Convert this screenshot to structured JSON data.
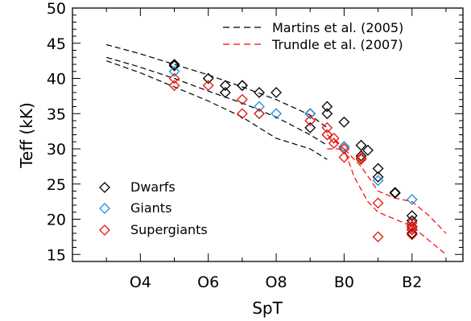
{
  "chart_data": {
    "type": "scatter",
    "xlabel": "SpT",
    "ylabel": "Teff (kK)",
    "xlim": [
      2,
      13.5
    ],
    "ylim": [
      14,
      50
    ],
    "x_ticks": [
      {
        "value": 4,
        "label": "O4"
      },
      {
        "value": 6,
        "label": "O6"
      },
      {
        "value": 8,
        "label": "O8"
      },
      {
        "value": 10,
        "label": "B0"
      },
      {
        "value": 12,
        "label": "B2"
      }
    ],
    "y_ticks": [
      15,
      20,
      25,
      30,
      35,
      40,
      45,
      50
    ],
    "line_series": [
      {
        "name": "Martins et al. (2005)",
        "color": "#000000",
        "style": "dashed",
        "lines": [
          [
            [
              3,
              44.8
            ],
            [
              4,
              43.5
            ],
            [
              5,
              42.0
            ],
            [
              6,
              40.5
            ],
            [
              7,
              38.8
            ],
            [
              8,
              37.0
            ],
            [
              9,
              34.8
            ],
            [
              9.5,
              33.0
            ]
          ],
          [
            [
              3,
              43.0
            ],
            [
              4,
              41.6
            ],
            [
              5,
              40.0
            ],
            [
              6,
              38.2
            ],
            [
              7,
              36.5
            ],
            [
              8,
              34.5
            ],
            [
              9,
              32.0
            ],
            [
              9.5,
              30.5
            ]
          ],
          [
            [
              3,
              42.5
            ],
            [
              4,
              40.8
            ],
            [
              5,
              38.8
            ],
            [
              6,
              36.8
            ],
            [
              7,
              34.5
            ],
            [
              8,
              31.5
            ],
            [
              9,
              30.0
            ],
            [
              9.5,
              28.5
            ]
          ]
        ]
      },
      {
        "name": "Trundle et al. (2007)",
        "color": "#ff0000",
        "style": "dashed",
        "lines": [
          [
            [
              9.5,
              30.0
            ],
            [
              10,
              30.0
            ],
            [
              10.5,
              27.5
            ],
            [
              11,
              24.0
            ],
            [
              11.5,
              23.0
            ],
            [
              12,
              22.5
            ],
            [
              12.5,
              20.5
            ],
            [
              13,
              18.0
            ]
          ],
          [
            [
              9.5,
              32.0
            ],
            [
              10,
              30.0
            ],
            [
              10.3,
              26.0
            ],
            [
              10.7,
              22.5
            ],
            [
              11,
              21.0
            ],
            [
              11.5,
              20.0
            ],
            [
              12,
              19.0
            ],
            [
              12.5,
              17.0
            ],
            [
              13,
              15.0
            ]
          ]
        ]
      }
    ],
    "series": [
      {
        "name": "Dwarfs",
        "color": "#000000",
        "marker": "diamond",
        "points": [
          [
            5,
            42
          ],
          [
            5,
            41.8
          ],
          [
            6,
            40
          ],
          [
            6.5,
            39
          ],
          [
            6.5,
            38
          ],
          [
            7,
            39
          ],
          [
            7,
            39
          ],
          [
            7.5,
            38
          ],
          [
            8,
            38
          ],
          [
            9,
            35
          ],
          [
            9,
            33
          ],
          [
            9.5,
            36
          ],
          [
            9.5,
            35
          ],
          [
            10,
            33.8
          ],
          [
            10,
            30.3
          ],
          [
            10.5,
            30.5
          ],
          [
            10.5,
            29
          ],
          [
            10.7,
            29.8
          ],
          [
            11,
            27.2
          ],
          [
            11,
            26
          ],
          [
            11.5,
            23.8
          ],
          [
            11.5,
            23.7
          ],
          [
            12,
            20.5
          ],
          [
            12,
            19.8
          ],
          [
            12,
            19
          ],
          [
            12,
            18.5
          ],
          [
            12,
            18
          ]
        ]
      },
      {
        "name": "Giants",
        "color": "#1f8dd6",
        "marker": "diamond",
        "points": [
          [
            5,
            41
          ],
          [
            7.5,
            36
          ],
          [
            7.5,
            35
          ],
          [
            8,
            35
          ],
          [
            9,
            35
          ],
          [
            9.5,
            32
          ],
          [
            10,
            30.3
          ],
          [
            11,
            25.5
          ],
          [
            12,
            22.8
          ]
        ]
      },
      {
        "name": "Supergiants",
        "color": "#e3180c",
        "marker": "diamond",
        "points": [
          [
            5,
            39
          ],
          [
            5,
            40
          ],
          [
            6,
            39
          ],
          [
            7,
            37
          ],
          [
            7,
            35
          ],
          [
            7.5,
            35
          ],
          [
            9,
            34
          ],
          [
            9.5,
            33
          ],
          [
            9.5,
            32
          ],
          [
            9.7,
            31.5
          ],
          [
            9.7,
            30.8
          ],
          [
            10,
            30
          ],
          [
            10,
            28.8
          ],
          [
            10.5,
            28.5
          ],
          [
            10.5,
            28.7
          ],
          [
            11,
            22.3
          ],
          [
            11,
            17.5
          ],
          [
            12,
            19.5
          ],
          [
            12,
            19
          ],
          [
            12,
            18.5
          ],
          [
            12,
            17.8
          ],
          [
            12,
            18.8
          ]
        ]
      }
    ]
  },
  "legend_lines": [
    {
      "label": "Martins et al. (2005)",
      "color": "#000000"
    },
    {
      "label": "Trundle et al. (2007)",
      "color": "#ff0000"
    }
  ],
  "legend_markers": [
    {
      "label": "Dwarfs",
      "color": "#000000"
    },
    {
      "label": "Giants",
      "color": "#1f8dd6"
    },
    {
      "label": "Supergiants",
      "color": "#e3180c"
    }
  ]
}
